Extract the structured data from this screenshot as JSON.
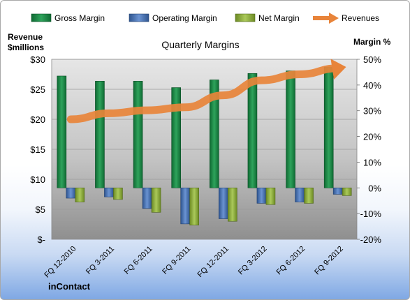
{
  "chart_data": {
    "type": "bar",
    "title": "Quarterly Margins",
    "categories": [
      "FQ 12-2010",
      "FQ 3-2011",
      "FQ 6-2011",
      "FQ 9-2011",
      "FQ 12-2011",
      "FQ 3-2012",
      "FQ 6-2012",
      "FQ 9-2012"
    ],
    "left_axis": {
      "label_line1": "Revenue",
      "label_line2": "$millions",
      "ticks": [
        "$-",
        "$5",
        "$10",
        "$15",
        "$20",
        "$25",
        "$30"
      ],
      "ylim": [
        0,
        30
      ]
    },
    "right_axis": {
      "label": "Margin %",
      "ticks": [
        "-20%",
        "-10%",
        "0%",
        "10%",
        "20%",
        "30%",
        "40%",
        "50%"
      ],
      "ylim": [
        -20,
        50
      ]
    },
    "series": [
      {
        "name": "Gross Margin",
        "axis": "right",
        "type": "bar",
        "color": "#1e8a4a",
        "values": [
          43.5,
          41.5,
          41.5,
          39,
          42,
          44.5,
          45.5,
          47
        ]
      },
      {
        "name": "Operating Margin",
        "axis": "right",
        "type": "bar",
        "color": "#4f78b8",
        "values": [
          -4,
          -3.5,
          -8,
          -14,
          -12,
          -6,
          -5.5,
          -2.5
        ]
      },
      {
        "name": "Net Margin",
        "axis": "right",
        "type": "bar",
        "color": "#8fae3a",
        "values": [
          -5.5,
          -4.5,
          -9.5,
          -14.5,
          -13,
          -6.5,
          -6,
          -3
        ]
      },
      {
        "name": "Revenues",
        "axis": "left",
        "type": "line",
        "color": "#e8843a",
        "values": [
          20,
          21,
          21.5,
          22,
          24,
          26.5,
          27.5,
          28.5
        ]
      }
    ],
    "legend_position": "top",
    "grid": true,
    "brand": "inContact"
  }
}
